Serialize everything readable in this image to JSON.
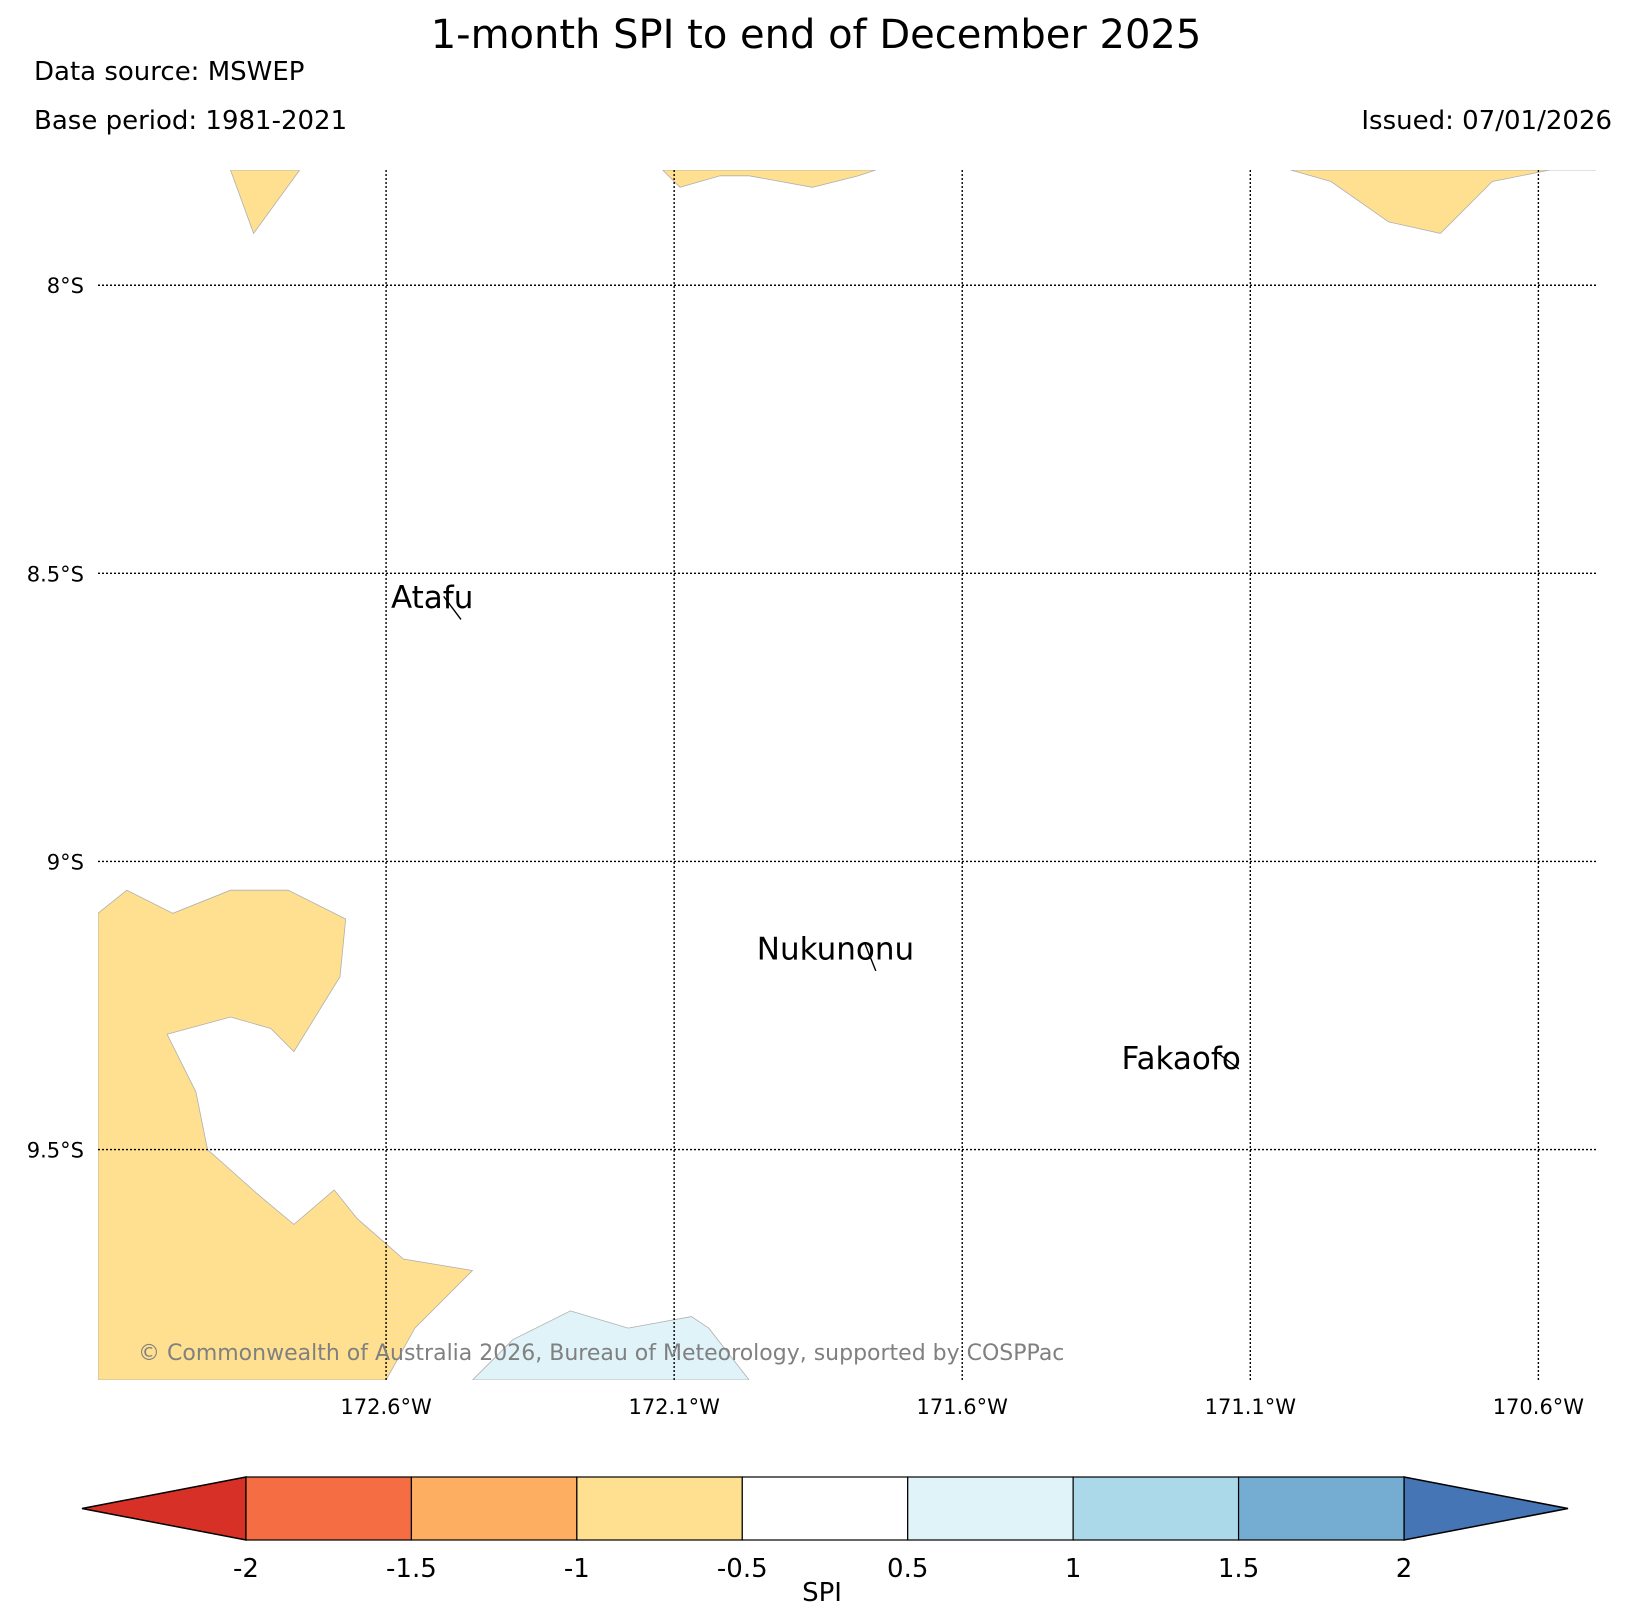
{
  "header": {
    "title": "1-month SPI to end of December 2025",
    "data_source": "Data source: MSWEP",
    "base_period": "Base period: 1981-2021",
    "issued": "Issued: 07/01/2026"
  },
  "map": {
    "lon_range": [
      -173.1,
      -170.5
    ],
    "lat_range": [
      -9.9,
      -7.8
    ],
    "lon_ticks": [
      {
        "value": -172.6,
        "label": "172.6°W"
      },
      {
        "value": -172.1,
        "label": "172.1°W"
      },
      {
        "value": -171.6,
        "label": "171.6°W"
      },
      {
        "value": -171.1,
        "label": "171.1°W"
      },
      {
        "value": -170.6,
        "label": "170.6°W"
      }
    ],
    "lat_ticks": [
      {
        "value": -8.0,
        "label": "8°S"
      },
      {
        "value": -8.5,
        "label": "8.5°S"
      },
      {
        "value": -9.0,
        "label": "9°S"
      },
      {
        "value": -9.5,
        "label": "9.5°S"
      }
    ],
    "grid": true,
    "places": [
      {
        "name": "Atafu",
        "lon": -172.52,
        "lat": -8.56,
        "line": [
          [
            -172.5,
            -8.54
          ],
          [
            -172.47,
            -8.58
          ]
        ]
      },
      {
        "name": "Nukunonu",
        "lon": -171.82,
        "lat": -9.17,
        "line": [
          [
            -171.77,
            -9.14
          ],
          [
            -171.75,
            -9.19
          ]
        ]
      },
      {
        "name": "Fakaofo",
        "lon": -171.22,
        "lat": -9.36,
        "line": [
          [
            -171.16,
            -9.33
          ],
          [
            -171.12,
            -9.36
          ]
        ]
      }
    ],
    "regions": [
      {
        "category": "-1 to -0.5",
        "color": "#fee090",
        "points": [
          [
            -172.87,
            -7.8
          ],
          [
            -172.83,
            -7.91
          ],
          [
            -172.75,
            -7.8
          ]
        ]
      },
      {
        "category": "-1 to -0.5",
        "color": "#fee090",
        "points": [
          [
            -172.12,
            -7.8
          ],
          [
            -172.09,
            -7.83
          ],
          [
            -172.02,
            -7.81
          ],
          [
            -171.97,
            -7.81
          ],
          [
            -171.86,
            -7.83
          ],
          [
            -171.78,
            -7.81
          ],
          [
            -171.75,
            -7.8
          ]
        ]
      },
      {
        "category": "-1 to -0.5",
        "color": "#fee090",
        "points": [
          [
            -171.03,
            -7.8
          ],
          [
            -170.96,
            -7.82
          ],
          [
            -170.86,
            -7.89
          ],
          [
            -170.77,
            -7.91
          ],
          [
            -170.68,
            -7.82
          ],
          [
            -170.58,
            -7.8
          ],
          [
            -170.5,
            -7.8
          ]
        ]
      },
      {
        "category": "-1 to -0.5",
        "color": "#fee090",
        "points": [
          [
            -173.1,
            -9.09
          ],
          [
            -173.05,
            -9.05
          ],
          [
            -172.97,
            -9.09
          ],
          [
            -172.87,
            -9.05
          ],
          [
            -172.77,
            -9.05
          ],
          [
            -172.67,
            -9.1
          ],
          [
            -172.68,
            -9.2
          ],
          [
            -172.76,
            -9.33
          ],
          [
            -172.8,
            -9.29
          ],
          [
            -172.87,
            -9.27
          ],
          [
            -172.98,
            -9.3
          ],
          [
            -172.93,
            -9.4
          ],
          [
            -172.91,
            -9.5
          ],
          [
            -172.82,
            -9.58
          ],
          [
            -172.76,
            -9.63
          ],
          [
            -172.69,
            -9.57
          ],
          [
            -172.65,
            -9.62
          ],
          [
            -172.57,
            -9.69
          ],
          [
            -172.45,
            -9.71
          ],
          [
            -172.55,
            -9.81
          ],
          [
            -172.6,
            -9.9
          ],
          [
            -173.1,
            -9.9
          ]
        ]
      },
      {
        "category": "0.5 to 1",
        "color": "#e0f3f8",
        "points": [
          [
            -172.45,
            -9.9
          ],
          [
            -172.38,
            -9.83
          ],
          [
            -172.28,
            -9.78
          ],
          [
            -172.18,
            -9.81
          ],
          [
            -172.07,
            -9.79
          ],
          [
            -172.04,
            -9.81
          ],
          [
            -171.97,
            -9.9
          ]
        ]
      }
    ]
  },
  "colorbar": {
    "label": "SPI",
    "ticks": [
      "-2",
      "-1.5",
      "-1",
      "-0.5",
      "0.5",
      "1",
      "1.5",
      "2"
    ],
    "under_color": "#d73027",
    "over_color": "#4575b4",
    "colors": [
      "#f46d43",
      "#fdae61",
      "#fee090",
      "#ffffff",
      "#e0f3f8",
      "#abd9e9",
      "#74add1"
    ]
  },
  "credit": "© Commonwealth of Australia 2026, Bureau of Meteorology, supported by COSPPac"
}
